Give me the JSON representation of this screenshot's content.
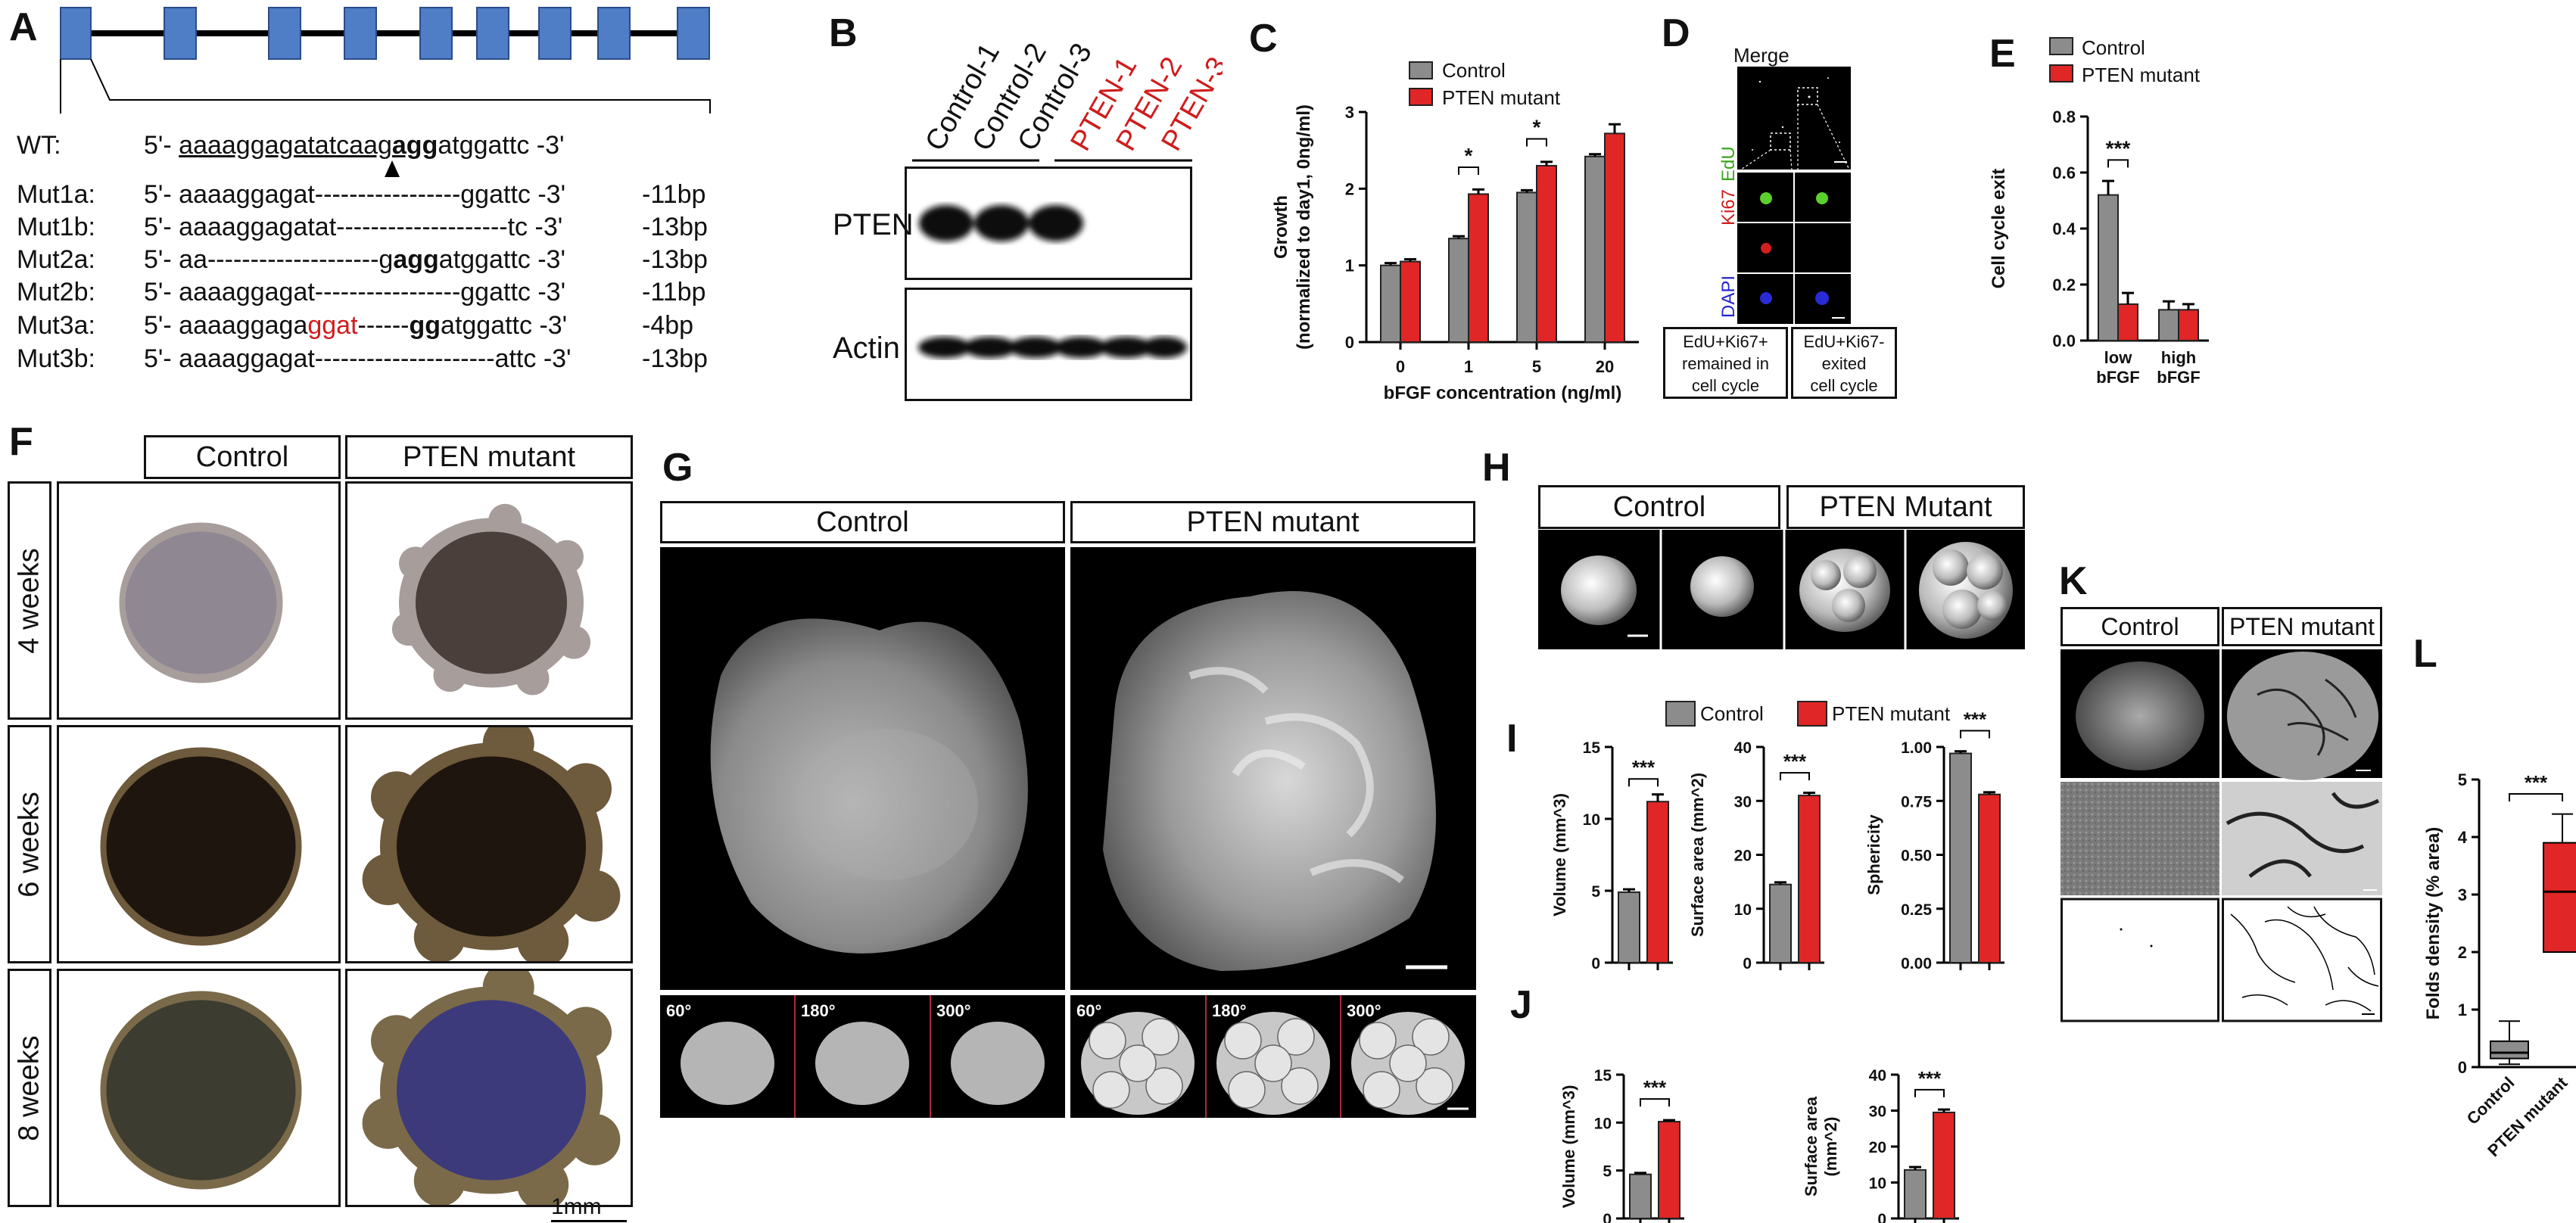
{
  "panels": {
    "A": "A",
    "B": "B",
    "C": "C",
    "D": "D",
    "E": "E",
    "F": "F",
    "G": "G",
    "H": "H",
    "I": "I",
    "J": "J",
    "K": "K",
    "L": "L"
  },
  "panelA": {
    "rows": [
      {
        "name": "WT:",
        "seq_pre": "5'- ",
        "seq_u": "aaaaggagatatcaag",
        "seq_b": "agg",
        "seq_post": "atggattc -3'",
        "bp": ""
      },
      {
        "name": "Mut1a:",
        "seq": "5'- aaaaggagat-----------------ggattc -3'",
        "bp": "-11bp"
      },
      {
        "name": "Mut1b:",
        "seq": "5'- aaaaggagatat--------------------tc -3'",
        "bp": "-13bp"
      },
      {
        "name": "Mut2a:",
        "seq_pre": "5'- aa--------------------g",
        "seq_b": "agg",
        "seq_post": "atggattc -3'",
        "bp": "-13bp"
      },
      {
        "name": "Mut2b:",
        "seq": "5'- aaaaggagat-----------------ggattc -3'",
        "bp": "-11bp"
      },
      {
        "name": "Mut3a:",
        "seq_pre": "5'- aaaaggaga",
        "seq_red": "ggat",
        "seq_mid": "------",
        "seq_b": "gg",
        "seq_post": "atggattc -3'",
        "bp": "-4bp"
      },
      {
        "name": "Mut3b:",
        "seq": "5'- aaaaggagat---------------------attc -3'",
        "bp": "-13bp"
      }
    ]
  },
  "panelB": {
    "lanes": [
      "Control-1",
      "Control-2",
      "Control-3",
      "PTEN-1",
      "PTEN-2",
      "PTEN-3"
    ],
    "rows": [
      "PTEN",
      "Actin"
    ]
  },
  "legend": {
    "control": "Control",
    "mutant": "PTEN mutant",
    "mutant_H": "PTEN Mutant"
  },
  "colors": {
    "control": "#8c8c8c",
    "mutant": "#e02626",
    "red_text": "#d01c1c"
  },
  "panelD": {
    "title": "Merge",
    "channels": [
      "EdU",
      "Ki67",
      "DAPI"
    ],
    "box1": [
      "EdU+Ki67+",
      "remained in",
      "cell cycle"
    ],
    "box2": [
      "EdU+Ki67-",
      "exited",
      "cell cycle"
    ]
  },
  "panelF": {
    "cols": [
      "Control",
      "PTEN mutant"
    ],
    "rows": [
      "4 weeks",
      "6 weeks",
      "8 weeks"
    ],
    "scale": "1mm"
  },
  "panelG": {
    "cols": [
      "Control",
      "PTEN mutant"
    ],
    "angles": [
      "60°",
      "180°",
      "300°"
    ]
  },
  "panelH": {
    "cols": [
      "Control",
      "PTEN Mutant"
    ]
  },
  "panelK": {
    "cols": [
      "Control",
      "PTEN mutant"
    ]
  },
  "chart_data": [
    {
      "panel": "C",
      "type": "bar",
      "categories": [
        "0",
        "1",
        "5",
        "20"
      ],
      "series": [
        {
          "name": "Control",
          "values": [
            1.0,
            1.35,
            1.95,
            2.42
          ],
          "err": [
            0.03,
            0.03,
            0.03,
            0.03
          ]
        },
        {
          "name": "PTEN mutant",
          "values": [
            1.05,
            1.93,
            2.3,
            2.72
          ],
          "err": [
            0.03,
            0.06,
            0.05,
            0.12
          ]
        }
      ],
      "xlabel": "bFGF concentration (ng/ml)",
      "ylabel": "Growth",
      "ylabel2": "(normalized to day1, 0ng/ml)",
      "ylim": [
        0,
        3
      ],
      "yticks": [
        "0",
        "1",
        "2",
        "3"
      ],
      "sig": [
        {
          "cat": 1,
          "label": "*"
        },
        {
          "cat": 2,
          "label": "*"
        }
      ]
    },
    {
      "panel": "E",
      "type": "bar",
      "categories": [
        "low bFGF",
        "high bFGF"
      ],
      "cat_lines": [
        [
          "low",
          "bFGF"
        ],
        [
          "high",
          "bFGF"
        ]
      ],
      "series": [
        {
          "name": "Control",
          "values": [
            0.52,
            0.11
          ],
          "err": [
            0.05,
            0.03
          ]
        },
        {
          "name": "PTEN mutant",
          "values": [
            0.13,
            0.11
          ],
          "err": [
            0.04,
            0.02
          ]
        }
      ],
      "ylabel": "Cell cycle exit",
      "ylim": [
        0,
        0.8
      ],
      "yticks": [
        "0.0",
        "0.2",
        "0.4",
        "0.6",
        "0.8"
      ],
      "sig": [
        {
          "cat": 0,
          "label": "***"
        }
      ]
    },
    {
      "panel": "I1",
      "type": "bar",
      "categories": [
        "Control",
        "PTEN mutant"
      ],
      "values": [
        4.9,
        11.2
      ],
      "err": [
        0.2,
        0.5
      ],
      "ylabel": "Volume (mm^3)",
      "ylim": [
        0,
        15
      ],
      "yticks": [
        "0",
        "5",
        "10",
        "15"
      ],
      "sig": "***"
    },
    {
      "panel": "I2",
      "type": "bar",
      "categories": [
        "Control",
        "PTEN mutant"
      ],
      "values": [
        14.5,
        31
      ],
      "err": [
        0.4,
        0.5
      ],
      "ylabel": "Surface area (mm^2)",
      "ylim": [
        0,
        40
      ],
      "yticks": [
        "0",
        "10",
        "20",
        "30",
        "40"
      ],
      "sig": "***"
    },
    {
      "panel": "I3",
      "type": "bar",
      "categories": [
        "Control",
        "PTEN mutant"
      ],
      "values": [
        0.97,
        0.78
      ],
      "err": [
        0.01,
        0.01
      ],
      "ylabel": "Sphericity",
      "ylim": [
        0,
        1
      ],
      "yticks": [
        "0.00",
        "0.25",
        "0.50",
        "0.75",
        "1.00"
      ],
      "sig": "***"
    },
    {
      "panel": "J1",
      "type": "bar",
      "categories": [
        "Control",
        "PTEN mutant"
      ],
      "values": [
        4.6,
        10.1
      ],
      "err": [
        0.15,
        0.15
      ],
      "ylabel": "Volume (mm^3)",
      "ylim": [
        0,
        15
      ],
      "yticks": [
        "0",
        "5",
        "10",
        "15"
      ],
      "sig": "***"
    },
    {
      "panel": "J2",
      "type": "bar",
      "categories": [
        "Control",
        "PTEN mutant"
      ],
      "values": [
        13.5,
        29.5
      ],
      "err": [
        0.8,
        0.8
      ],
      "ylabel": "Surface area",
      "ylabel2": "(mm^2)",
      "ylim": [
        0,
        40
      ],
      "yticks": [
        "0",
        "10",
        "20",
        "30",
        "40"
      ],
      "sig": "***"
    },
    {
      "panel": "L",
      "type": "box",
      "categories": [
        "Control",
        "PTEN mutant"
      ],
      "boxes": [
        {
          "min": 0.05,
          "q1": 0.15,
          "median": 0.25,
          "q3": 0.45,
          "max": 0.8
        },
        {
          "min": 2.0,
          "q1": 2.0,
          "median": 3.05,
          "q3": 3.9,
          "max": 4.4
        }
      ],
      "ylabel": "Folds density (% area)",
      "ylim": [
        0,
        5
      ],
      "yticks": [
        "0",
        "1",
        "2",
        "3",
        "4",
        "5"
      ],
      "sig": "***"
    }
  ]
}
